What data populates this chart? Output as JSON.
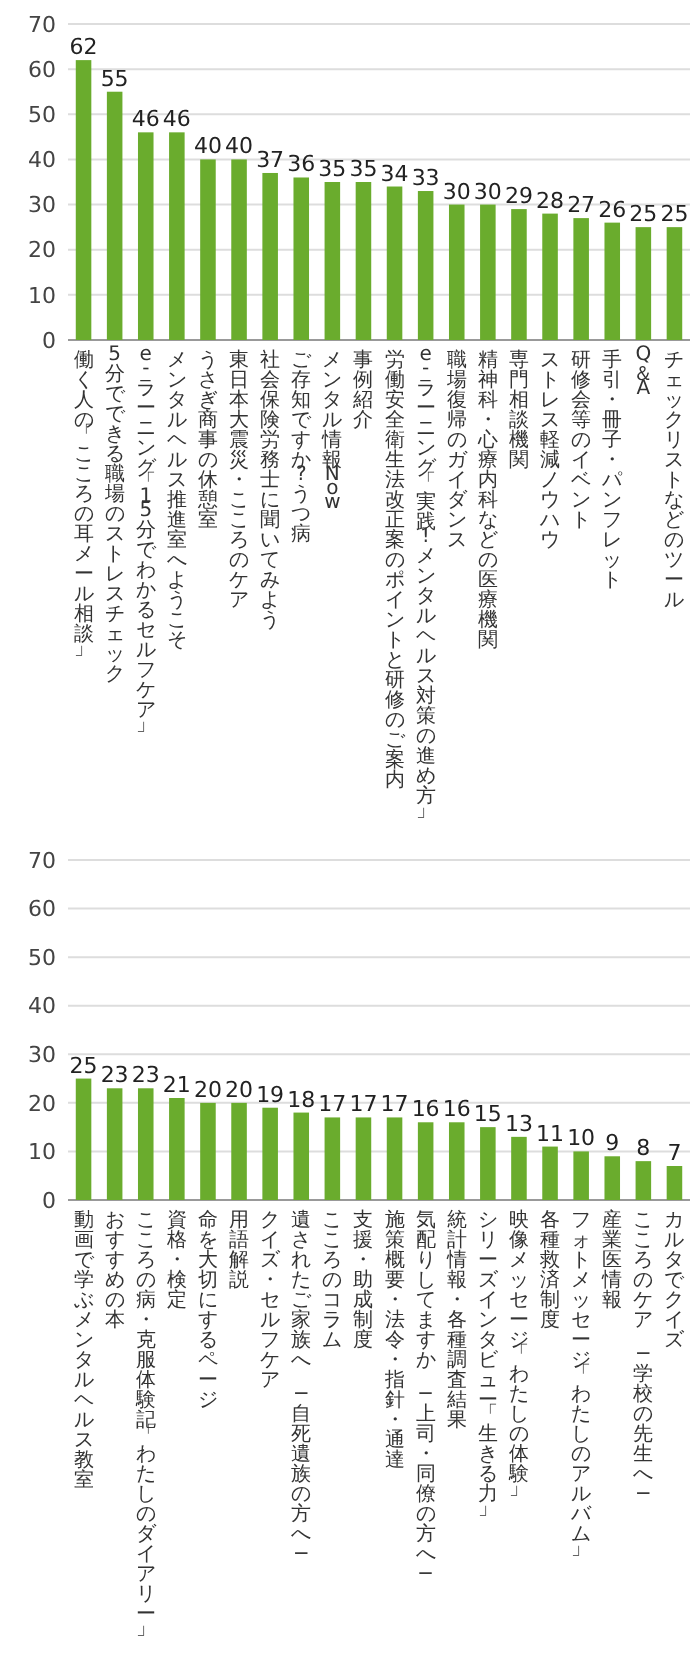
{
  "chart_data": [
    {
      "type": "bar",
      "categories": [
        "働く人の「こころの耳メール相談」",
        "5分でできる職場のストレスチェック",
        "e-ラーニング「15分でわかるセルフケア」",
        "メンタルヘルス推進室へようこそ",
        "うさぎ商事の休憩室",
        "東日本大震災・こころのケア",
        "社会保険労務士に聞いてみよう",
        "ご存知ですか?うつ病",
        "メンタル情報Now",
        "事例紹介",
        "労働安全衛生法改正案のポイントと研修のご案内",
        "e-ラーニング「実践!メンタルヘルス対策の進め方」",
        "職場復帰のガイダンス",
        "精神科・心療内科などの医療機関",
        "専門相談機関",
        "ストレス軽減ノウハウ",
        "研修会等のイベント",
        "手引・冊子・パンフレット",
        "Q＆A",
        "チェックリストなどのツール"
      ],
      "values": [
        62,
        55,
        46,
        46,
        40,
        40,
        37,
        36,
        35,
        35,
        34,
        33,
        30,
        30,
        29,
        28,
        27,
        26,
        25,
        25
      ],
      "color": "#6aac2d",
      "ylim": [
        0,
        70
      ],
      "yticks": [
        0,
        10,
        20,
        30,
        40,
        50,
        60,
        70
      ],
      "grid": "y",
      "data_labels": true
    },
    {
      "type": "bar",
      "categories": [
        "動画で学ぶメンタルヘルス教室",
        "おすすめの本",
        "こころの病・克服体験記「わたしのダイアリー」",
        "資格・検定",
        "命を大切にするページ",
        "用語解説",
        "クイズ・セルフケア",
        "遺されたご家族へ ─自死遺族の方へ─",
        "こころのコラム",
        "支援・助成制度",
        "施策概要・法令・指針・通達",
        "気配りしてますか ─上司・同僚の方へ─",
        "統計情報・各種調査結果",
        "シリーズインタビュー「生きる力」",
        "映像メッセージ「わたしの体験」",
        "各種救済制度",
        "フォトメッセージ「わたしのアルバム」",
        "産業医情報",
        "こころのケア ─学校の先生へ─",
        "カルタでクイズ"
      ],
      "values": [
        25,
        23,
        23,
        21,
        20,
        20,
        19,
        18,
        17,
        17,
        17,
        16,
        16,
        15,
        13,
        11,
        10,
        9,
        8,
        7
      ],
      "color": "#6aac2d",
      "ylim": [
        0,
        70
      ],
      "yticks": [
        0,
        10,
        20,
        30,
        40,
        50,
        60,
        70
      ],
      "grid": "y",
      "data_labels": true
    }
  ]
}
